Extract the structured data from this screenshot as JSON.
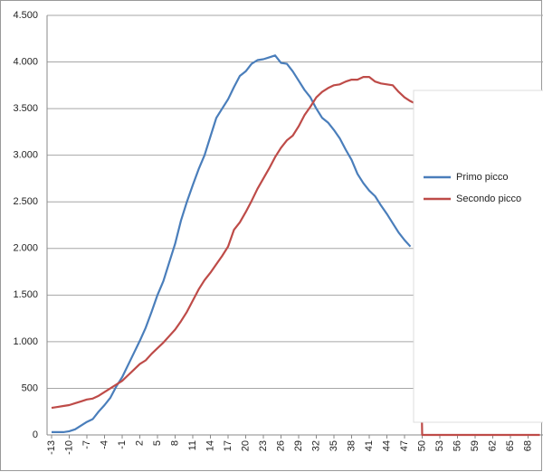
{
  "chart_data": {
    "type": "line",
    "categories": [
      "-13",
      null,
      null,
      "-10",
      null,
      null,
      "-7",
      null,
      null,
      "-4",
      null,
      null,
      "-1",
      null,
      null,
      "2",
      null,
      null,
      "5",
      null,
      null,
      "8",
      null,
      null,
      "11",
      null,
      null,
      "14",
      null,
      null,
      "17",
      null,
      null,
      "20",
      null,
      null,
      "23",
      null,
      null,
      "26",
      null,
      null,
      "29",
      null,
      null,
      "32",
      null,
      null,
      "35",
      null,
      null,
      "38",
      null,
      null,
      "41",
      null,
      null,
      "44",
      null,
      null,
      "47",
      null,
      null,
      "50",
      null,
      null,
      "53",
      null,
      null,
      "56",
      null,
      null,
      "59",
      null,
      null,
      "62",
      null,
      null,
      "65",
      null,
      null,
      "68",
      null,
      null
    ],
    "series": [
      {
        "name": "Primo picco",
        "color": "#4a7ebb",
        "values": [
          30,
          30,
          30,
          40,
          60,
          100,
          140,
          170,
          250,
          320,
          400,
          520,
          620,
          750,
          880,
          1010,
          1150,
          1320,
          1500,
          1650,
          1850,
          2050,
          2300,
          2500,
          2680,
          2850,
          3000,
          3200,
          3400,
          3500,
          3600,
          3730,
          3850,
          3900,
          3980,
          4020,
          4030,
          4050,
          4070,
          3990,
          3980,
          3900,
          3800,
          3700,
          3620,
          3500,
          3400,
          3350,
          3270,
          3180,
          3060,
          2950,
          2800,
          2700,
          2620,
          2560,
          2460,
          2370,
          2270,
          2170,
          2090,
          2020,
          null,
          null,
          null,
          null,
          null,
          null,
          null,
          null,
          null,
          null,
          null,
          null,
          null,
          null,
          null,
          null,
          null,
          null,
          null,
          null,
          null,
          null
        ]
      },
      {
        "name": "Secondo picco",
        "color": "#be4b48",
        "values": [
          290,
          300,
          310,
          320,
          340,
          360,
          380,
          390,
          420,
          460,
          500,
          540,
          580,
          640,
          700,
          760,
          800,
          870,
          930,
          990,
          1060,
          1130,
          1220,
          1320,
          1440,
          1560,
          1660,
          1740,
          1830,
          1920,
          2020,
          2200,
          2280,
          2390,
          2510,
          2640,
          2750,
          2860,
          2980,
          3080,
          3160,
          3210,
          3310,
          3430,
          3520,
          3620,
          3680,
          3720,
          3750,
          3760,
          3790,
          3810,
          3810,
          3840,
          3840,
          3790,
          3770,
          3760,
          3750,
          3680,
          3620,
          3580,
          3550,
          0,
          0,
          0,
          0,
          0,
          0,
          0,
          0,
          0,
          0,
          0,
          0,
          0,
          0,
          0,
          0,
          0,
          0,
          0,
          0,
          0
        ]
      }
    ],
    "ylim": [
      0,
      4500
    ],
    "yticks": [
      0,
      500,
      {
        "value": 1000,
        "label": "1.000"
      },
      {
        "value": 1500,
        "label": "1.500"
      },
      {
        "value": 2000,
        "label": "2.000"
      },
      {
        "value": 2500,
        "label": "2.500"
      },
      {
        "value": 3000,
        "label": "3.000"
      },
      {
        "value": 3500,
        "label": "3.500"
      },
      {
        "value": 4000,
        "label": "4.000"
      },
      {
        "value": 4500,
        "label": "4.500"
      }
    ],
    "grid": true,
    "legend": "right"
  }
}
